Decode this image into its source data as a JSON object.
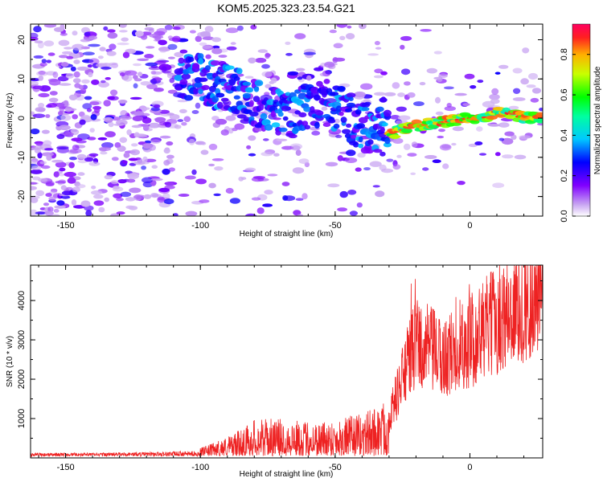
{
  "chart_data": [
    {
      "type": "heatmap",
      "title": "KOM5.2025.323.23.54.G21",
      "xlabel": "Height of straight line (km)",
      "ylabel": "Frequency (Hz)",
      "xlim": [
        -163,
        27
      ],
      "ylim": [
        -25,
        24
      ],
      "xticks": [
        -150,
        -100,
        -50,
        0
      ],
      "yticks": [
        -20,
        -10,
        0,
        10,
        20
      ],
      "colorbar": {
        "label": "Normalized spectral amplitude",
        "range": [
          0,
          0.95
        ],
        "ticks": [
          "0.0",
          "0.2",
          "0.4",
          "0.6",
          "0.8"
        ],
        "tick_values": [
          0,
          0.2,
          0.4,
          0.6,
          0.8
        ],
        "colormap": "rainbow-white-to-red"
      },
      "ridge": {
        "description": "frequency of the signal trace vs height",
        "points": [
          [
            -105,
            11
          ],
          [
            -95,
            9
          ],
          [
            -85,
            6
          ],
          [
            -75,
            3
          ],
          [
            -65,
            1
          ],
          [
            -55,
            4
          ],
          [
            -50,
            3
          ],
          [
            -40,
            -2
          ],
          [
            -30,
            -4
          ],
          [
            -20,
            -2
          ],
          [
            -10,
            -1
          ],
          [
            0,
            0
          ],
          [
            5,
            0
          ],
          [
            10,
            2
          ],
          [
            15,
            1
          ],
          [
            20,
            0
          ],
          [
            27,
            0
          ]
        ]
      }
    },
    {
      "type": "line",
      "title": "",
      "xlabel": "Height of straight line (km)",
      "ylabel": "SNR (10 * v/v)",
      "xlim": [
        -163,
        27
      ],
      "ylim": [
        0,
        4900
      ],
      "xticks": [
        -150,
        -100,
        -50,
        0
      ],
      "yticks": [
        1000,
        2000,
        3000,
        4000
      ],
      "color": "#ee2222",
      "envelope": {
        "x": [
          -163,
          -140,
          -120,
          -100,
          -95,
          -85,
          -80,
          -70,
          -60,
          -50,
          -40,
          -30,
          -25,
          -20,
          -15,
          -10,
          -5,
          0,
          5,
          10,
          15,
          20,
          27
        ],
        "y": [
          100,
          100,
          120,
          150,
          250,
          500,
          700,
          700,
          650,
          700,
          800,
          1100,
          2200,
          3200,
          3000,
          2700,
          3000,
          3200,
          3500,
          3800,
          4000,
          4300,
          4500
        ]
      }
    }
  ],
  "colors": {
    "line": "#ee2222",
    "frame": "#000000"
  }
}
